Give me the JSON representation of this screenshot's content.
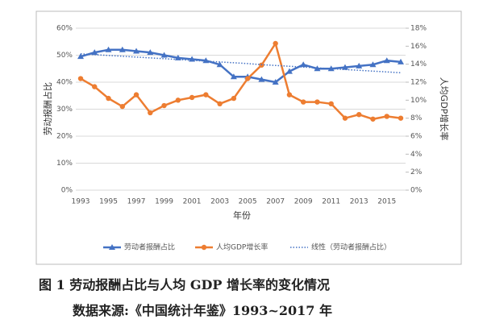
{
  "chart_data": {
    "type": "line",
    "xlabel": "年份",
    "ylabel": "劳动报酬占比",
    "y2label": "人均GDP增长率",
    "categories": [
      "1993",
      null,
      "1995",
      null,
      "1997",
      null,
      "1999",
      null,
      "2001",
      null,
      "2003",
      null,
      "2005",
      null,
      "2007",
      null,
      "2009",
      null,
      "2011",
      null,
      "2013",
      null,
      "2015",
      null
    ],
    "series": [
      {
        "name": "劳动者报酬占比",
        "color": "#4472c4",
        "marker": "triangle",
        "values": [
          49.5,
          51,
          52,
          52,
          51.5,
          51,
          50,
          49,
          48.5,
          48,
          46.5,
          42,
          42,
          41,
          40,
          44,
          46.5,
          45,
          45,
          45.5,
          46,
          46.5,
          48,
          47.5
        ]
      },
      {
        "name": "人均GDP增长率",
        "color": "#ed7d31",
        "marker": "circle",
        "axis": "y2",
        "values": [
          12.4,
          11.5,
          10.2,
          9.3,
          10.6,
          8.6,
          9.4,
          10,
          10.3,
          10.6,
          9.6,
          10.2,
          12.4,
          13.9,
          16.3,
          10.6,
          9.8,
          9.8,
          9.6,
          8,
          8.4,
          7.9,
          8.2,
          8
        ]
      },
      {
        "name": "线性（劳动者报酬占比）",
        "color": "#4472c4",
        "dash": "dotted",
        "values": [
          50.5,
          50.2,
          49.9,
          49.6,
          49.3,
          49.0,
          48.7,
          48.4,
          48.1,
          47.8,
          47.5,
          47.2,
          46.9,
          46.5,
          46.2,
          45.9,
          45.6,
          45.3,
          45.0,
          44.7,
          44.4,
          44.1,
          43.8,
          43.5
        ]
      }
    ],
    "ylim": [
      0,
      60
    ],
    "yticks": [
      {
        "value": 0,
        "label": "0%"
      },
      {
        "value": 10,
        "label": "10%"
      },
      {
        "value": 20,
        "label": "20%"
      },
      {
        "value": 30,
        "label": "30%"
      },
      {
        "value": 40,
        "label": "40%"
      },
      {
        "value": 50,
        "label": "50%"
      },
      {
        "value": 60,
        "label": "60%"
      }
    ],
    "y2lim": [
      0,
      18
    ],
    "y2ticks": [
      {
        "value": 0,
        "label": "0%"
      },
      {
        "value": 2,
        "label": "2%"
      },
      {
        "value": 4,
        "label": "4%"
      },
      {
        "value": 6,
        "label": "6%"
      },
      {
        "value": 8,
        "label": "8%"
      },
      {
        "value": 10,
        "label": "10%"
      },
      {
        "value": 12,
        "label": "12%"
      },
      {
        "value": 14,
        "label": "14%"
      },
      {
        "value": 16,
        "label": "16%"
      },
      {
        "value": 18,
        "label": "18%"
      }
    ],
    "caption": "图 1 劳动报酬占比与人均 GDP 增长率的变化情况",
    "source": "数据来源:《中国统计年鉴》1993~2017 年"
  }
}
